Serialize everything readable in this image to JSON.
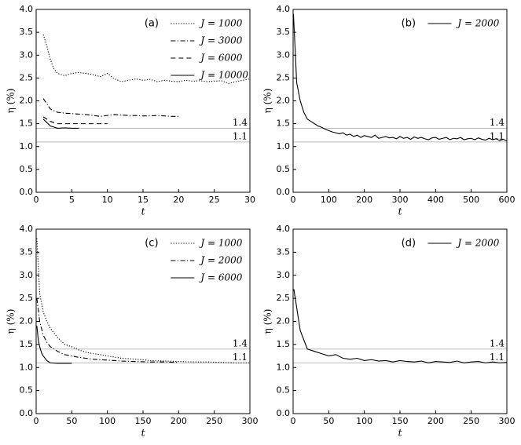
{
  "chart_data": [
    {
      "type": "line",
      "label": "(a)",
      "x_label": "t",
      "y_label": "η (%)",
      "xlim": [
        0,
        30
      ],
      "xticks": [
        0,
        5,
        10,
        15,
        20,
        25,
        30
      ],
      "ylim": [
        0,
        4
      ],
      "yticks": [
        {
          "value": 0,
          "label": "0.0"
        },
        0.5,
        {
          "value": 1,
          "label": "1.0"
        },
        1.5,
        {
          "value": 2,
          "label": "2.0"
        },
        2.5,
        {
          "value": 3,
          "label": "3.0"
        },
        3.5,
        {
          "value": 4,
          "label": "4.0"
        }
      ],
      "hlines": [
        1.4,
        1.1
      ],
      "hline_color": "#bbbbbb",
      "legend": "upper right",
      "series": [
        {
          "name": "J = 1000",
          "color": "#000000",
          "dash": "dotted",
          "x": [
            1,
            1.5,
            2,
            2.5,
            3,
            4,
            5,
            6,
            7,
            8,
            9,
            10,
            11,
            12,
            13,
            14,
            15,
            16,
            17,
            18,
            19,
            20,
            21,
            22,
            23,
            24,
            25,
            26,
            27,
            28,
            29,
            30
          ],
          "values": [
            3.45,
            3.2,
            2.9,
            2.7,
            2.6,
            2.55,
            2.6,
            2.62,
            2.6,
            2.57,
            2.53,
            2.6,
            2.48,
            2.42,
            2.45,
            2.48,
            2.45,
            2.47,
            2.42,
            2.45,
            2.43,
            2.42,
            2.45,
            2.43,
            2.44,
            2.42,
            2.43,
            2.44,
            2.38,
            2.42,
            2.45,
            2.48
          ]
        },
        {
          "name": "J = 3000",
          "color": "#000000",
          "dash": "dashdot",
          "x": [
            1,
            2,
            3,
            4,
            5,
            6,
            7,
            8,
            9,
            10,
            11,
            12,
            13,
            14,
            15,
            16,
            17,
            18,
            19,
            20
          ],
          "values": [
            2.05,
            1.82,
            1.75,
            1.73,
            1.72,
            1.71,
            1.7,
            1.68,
            1.66,
            1.68,
            1.7,
            1.69,
            1.68,
            1.68,
            1.67,
            1.67,
            1.68,
            1.67,
            1.66,
            1.66
          ]
        },
        {
          "name": "J = 6000",
          "color": "#000000",
          "dash": "dashed",
          "x": [
            1,
            2,
            3,
            4,
            5,
            6,
            7,
            8,
            9,
            10
          ],
          "values": [
            1.65,
            1.55,
            1.5,
            1.5,
            1.5,
            1.5,
            1.5,
            1.5,
            1.5,
            1.5
          ]
        },
        {
          "name": "J = 10000",
          "color": "#000000",
          "dash": "solid",
          "x": [
            1,
            2,
            3,
            4,
            5,
            6
          ],
          "values": [
            1.6,
            1.45,
            1.4,
            1.41,
            1.4,
            1.4
          ]
        }
      ]
    },
    {
      "type": "line",
      "label": "(b)",
      "x_label": "t",
      "y_label": "η (%)",
      "xlim": [
        0,
        600
      ],
      "xticks": [
        0,
        100,
        200,
        300,
        400,
        500,
        600
      ],
      "ylim": [
        0,
        4
      ],
      "yticks": [
        {
          "value": 0,
          "label": "0.0"
        },
        0.5,
        {
          "value": 1,
          "label": "1.0"
        },
        1.5,
        {
          "value": 2,
          "label": "2.0"
        },
        2.5,
        {
          "value": 3,
          "label": "3.0"
        },
        3.5,
        {
          "value": 4,
          "label": "4.0"
        }
      ],
      "hlines": [
        1.4,
        1.1
      ],
      "hline_color": "#bbbbbb",
      "legend": "upper right",
      "series": [
        {
          "name": "J = 2000",
          "color": "#000000",
          "dash": "solid",
          "x": [
            1,
            10,
            20,
            30,
            40,
            50,
            60,
            70,
            80,
            90,
            100,
            110,
            120,
            130,
            140,
            150,
            160,
            170,
            180,
            190,
            200,
            210,
            220,
            230,
            240,
            250,
            260,
            270,
            280,
            290,
            300,
            310,
            320,
            330,
            340,
            350,
            360,
            370,
            380,
            390,
            400,
            410,
            420,
            430,
            440,
            450,
            460,
            470,
            480,
            490,
            500,
            510,
            520,
            530,
            540,
            550,
            560,
            570,
            580,
            590,
            600
          ],
          "values": [
            3.9,
            2.4,
            2.0,
            1.75,
            1.6,
            1.55,
            1.5,
            1.45,
            1.42,
            1.38,
            1.35,
            1.32,
            1.3,
            1.28,
            1.3,
            1.25,
            1.27,
            1.22,
            1.25,
            1.2,
            1.24,
            1.22,
            1.2,
            1.25,
            1.18,
            1.2,
            1.22,
            1.19,
            1.2,
            1.17,
            1.22,
            1.18,
            1.2,
            1.16,
            1.21,
            1.18,
            1.2,
            1.17,
            1.15,
            1.19,
            1.2,
            1.16,
            1.18,
            1.2,
            1.15,
            1.18,
            1.17,
            1.2,
            1.15,
            1.17,
            1.18,
            1.15,
            1.19,
            1.16,
            1.14,
            1.18,
            1.15,
            1.17,
            1.13,
            1.16,
            1.12
          ]
        }
      ]
    },
    {
      "type": "line",
      "label": "(c)",
      "x_label": "t",
      "y_label": "η (%)",
      "xlim": [
        0,
        300
      ],
      "xticks": [
        0,
        50,
        100,
        150,
        200,
        250,
        300
      ],
      "ylim": [
        0,
        4
      ],
      "yticks": [
        {
          "value": 0,
          "label": "0.0"
        },
        0.5,
        {
          "value": 1,
          "label": "1.0"
        },
        1.5,
        {
          "value": 2,
          "label": "2.0"
        },
        2.5,
        {
          "value": 3,
          "label": "3.0"
        },
        3.5,
        {
          "value": 4,
          "label": "4.0"
        }
      ],
      "hlines": [
        1.4,
        1.1
      ],
      "hline_color": "#bbbbbb",
      "legend": "upper right",
      "series": [
        {
          "name": "J = 1000",
          "color": "#000000",
          "dash": "dotted",
          "x": [
            1,
            5,
            10,
            15,
            20,
            25,
            30,
            40,
            50,
            60,
            70,
            80,
            90,
            100,
            120,
            140,
            160,
            180,
            200,
            220,
            240,
            260,
            280,
            300
          ],
          "values": [
            3.8,
            2.6,
            2.2,
            2.0,
            1.85,
            1.75,
            1.65,
            1.5,
            1.45,
            1.38,
            1.33,
            1.3,
            1.28,
            1.25,
            1.2,
            1.18,
            1.15,
            1.14,
            1.13,
            1.12,
            1.12,
            1.11,
            1.1,
            1.1
          ]
        },
        {
          "name": "J = 2000",
          "color": "#000000",
          "dash": "dashdot",
          "x": [
            1,
            5,
            10,
            15,
            20,
            30,
            40,
            50,
            60,
            70,
            80,
            90,
            100,
            120,
            140,
            160,
            180,
            200
          ],
          "values": [
            2.5,
            2.0,
            1.7,
            1.55,
            1.45,
            1.35,
            1.28,
            1.25,
            1.22,
            1.2,
            1.18,
            1.17,
            1.16,
            1.14,
            1.13,
            1.12,
            1.12,
            1.11
          ]
        },
        {
          "name": "J = 6000",
          "color": "#000000",
          "dash": "solid",
          "x": [
            1,
            3,
            5,
            8,
            10,
            15,
            20,
            30,
            40,
            50
          ],
          "values": [
            1.9,
            1.6,
            1.45,
            1.3,
            1.25,
            1.15,
            1.1,
            1.09,
            1.09,
            1.09
          ]
        }
      ]
    },
    {
      "type": "line",
      "label": "(d)",
      "x_label": "t",
      "y_label": "η (%)",
      "xlim": [
        0,
        300
      ],
      "xticks": [
        0,
        50,
        100,
        150,
        200,
        250,
        300
      ],
      "ylim": [
        0,
        4
      ],
      "yticks": [
        {
          "value": 0,
          "label": "0.0"
        },
        0.5,
        {
          "value": 1,
          "label": "1.0"
        },
        1.5,
        {
          "value": 2,
          "label": "2.0"
        },
        2.5,
        {
          "value": 3,
          "label": "3.0"
        },
        3.5,
        {
          "value": 4,
          "label": "4.0"
        }
      ],
      "hlines": [
        1.4,
        1.1
      ],
      "hline_color": "#bbbbbb",
      "legend": "upper right",
      "series": [
        {
          "name": "J = 2000",
          "color": "#000000",
          "dash": "solid",
          "x": [
            1,
            10,
            20,
            30,
            40,
            50,
            60,
            70,
            80,
            90,
            100,
            110,
            120,
            130,
            140,
            150,
            160,
            170,
            180,
            190,
            200,
            210,
            220,
            230,
            240,
            250,
            260,
            270,
            280,
            290,
            300
          ],
          "values": [
            2.7,
            1.8,
            1.4,
            1.35,
            1.3,
            1.25,
            1.28,
            1.2,
            1.18,
            1.2,
            1.15,
            1.17,
            1.14,
            1.15,
            1.12,
            1.15,
            1.13,
            1.12,
            1.14,
            1.1,
            1.13,
            1.12,
            1.11,
            1.14,
            1.1,
            1.12,
            1.13,
            1.1,
            1.12,
            1.1,
            1.11
          ]
        }
      ]
    }
  ]
}
